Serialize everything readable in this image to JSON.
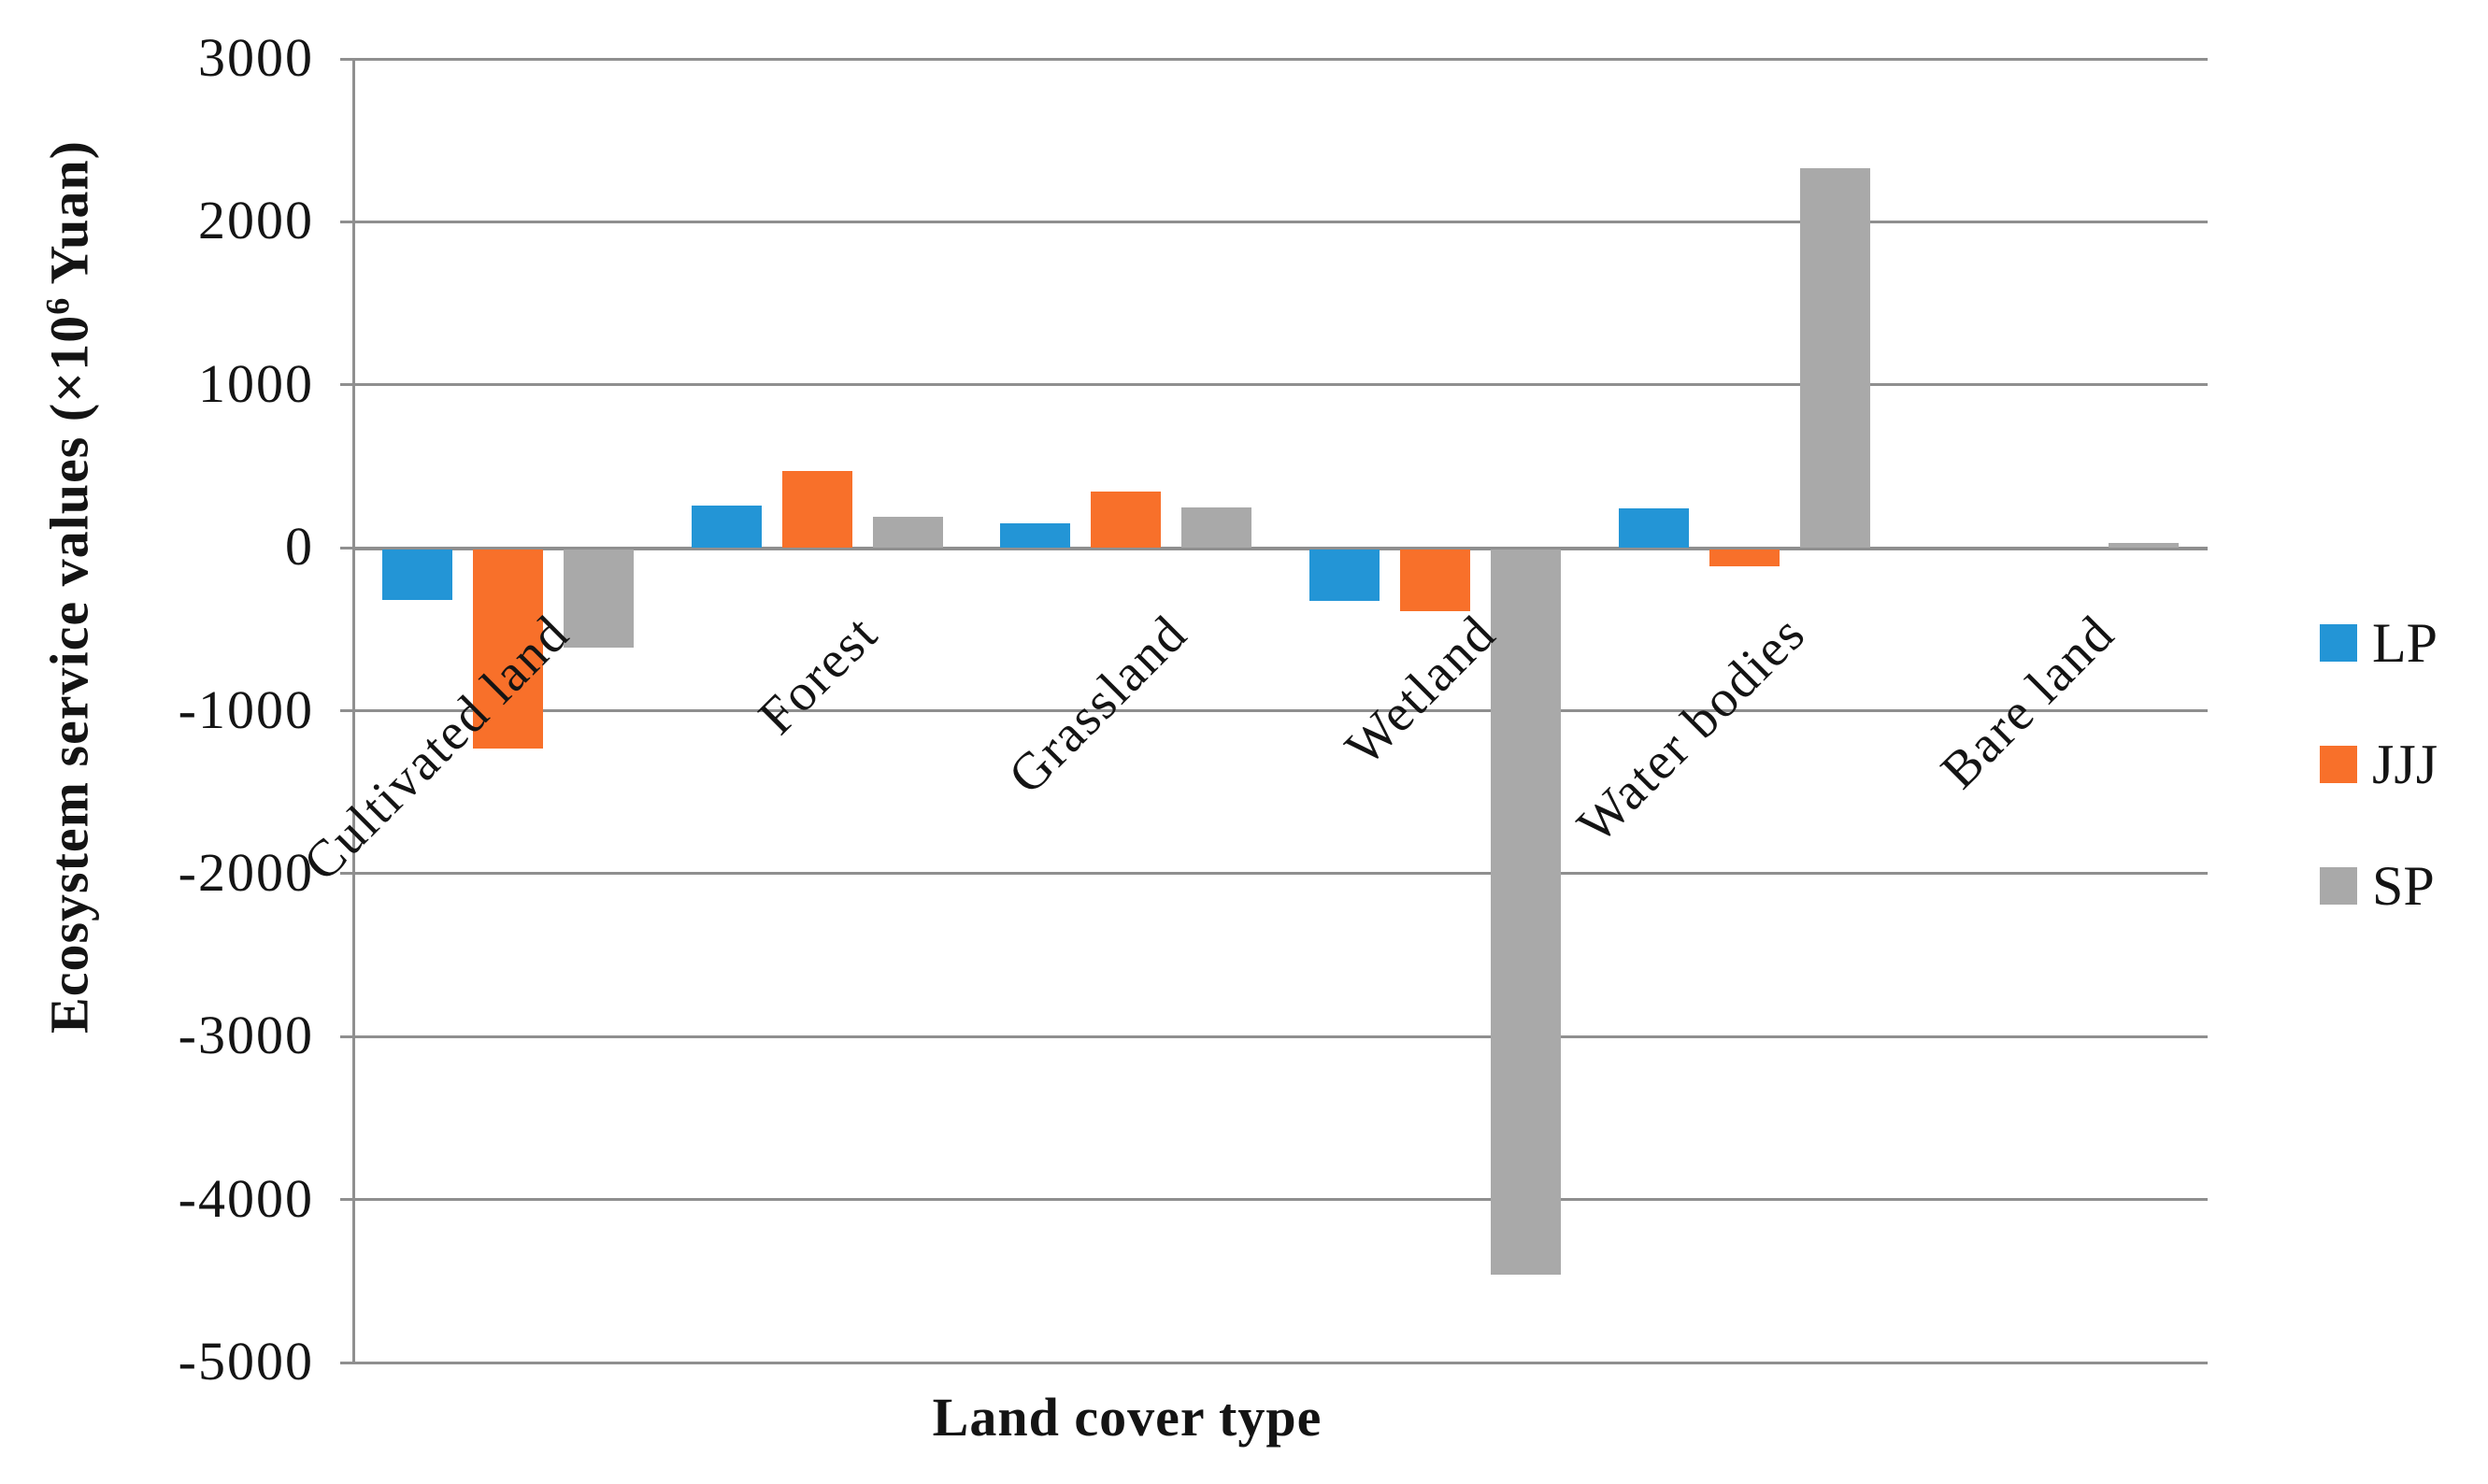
{
  "chart_data": {
    "type": "bar",
    "title": "",
    "xlabel": "Land cover type",
    "ylabel": "Ecosystem service values (×10⁶ Yuan)",
    "ylabel_parts": {
      "prefix": "Ecosystem service values (×10",
      "sup": "6",
      "suffix": " Yuan)"
    },
    "categories": [
      "Cultivated land",
      "Forest",
      "Grassland",
      "Wetland",
      "Water bodies",
      "Bare land"
    ],
    "series": [
      {
        "name": "LP",
        "color": "#2395d6",
        "values": [
          -310,
          260,
          150,
          -315,
          240,
          0
        ]
      },
      {
        "name": "JJJ",
        "color": "#f8702a",
        "values": [
          -1220,
          470,
          345,
          -380,
          -100,
          0
        ]
      },
      {
        "name": "SP",
        "color": "#a9a9a9",
        "values": [
          -600,
          190,
          250,
          -4450,
          2330,
          30
        ]
      }
    ],
    "ylim": [
      -5000,
      3000
    ],
    "yticks": [
      3000,
      2000,
      1000,
      0,
      -1000,
      -2000,
      -3000,
      -4000,
      -5000
    ],
    "grid": true,
    "grid_color": "#8f8f8f",
    "text_color": "#141414",
    "legend_position": "right",
    "legend_labels": [
      "LP",
      "JJJ",
      "SP"
    ]
  }
}
